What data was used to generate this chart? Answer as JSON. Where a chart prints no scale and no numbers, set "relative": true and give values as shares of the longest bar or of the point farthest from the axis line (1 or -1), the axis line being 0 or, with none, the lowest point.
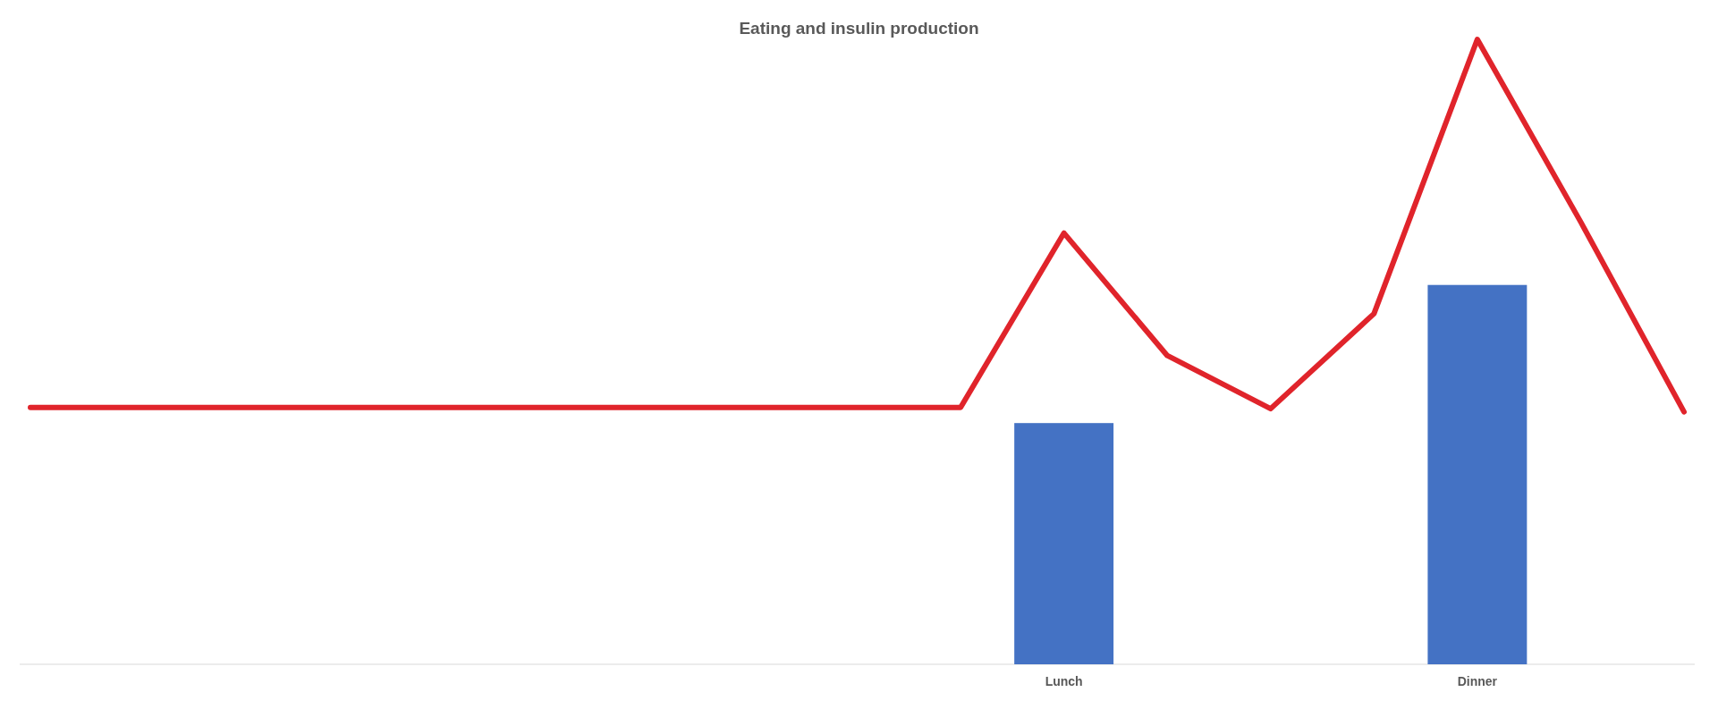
{
  "chart_data": {
    "type": "bar",
    "title": "Eating and insulin production",
    "relative": true,
    "categories": [
      null,
      null,
      null,
      null,
      null,
      null,
      null,
      null,
      null,
      null,
      "Lunch",
      null,
      null,
      null,
      "Dinner",
      null,
      null
    ],
    "series": [
      {
        "color": "#4472c4",
        "values": [
          null,
          null,
          null,
          null,
          null,
          null,
          null,
          null,
          null,
          null,
          0.386,
          null,
          null,
          null,
          0.607,
          null,
          null
        ]
      },
      {
        "type": "line",
        "color": "#e0242b",
        "values": [
          0.411,
          0.411,
          0.411,
          0.411,
          0.411,
          0.411,
          0.411,
          0.411,
          0.411,
          0.411,
          0.69,
          0.494,
          0.409,
          0.561,
          1,
          0.708,
          0.404
        ]
      }
    ]
  }
}
